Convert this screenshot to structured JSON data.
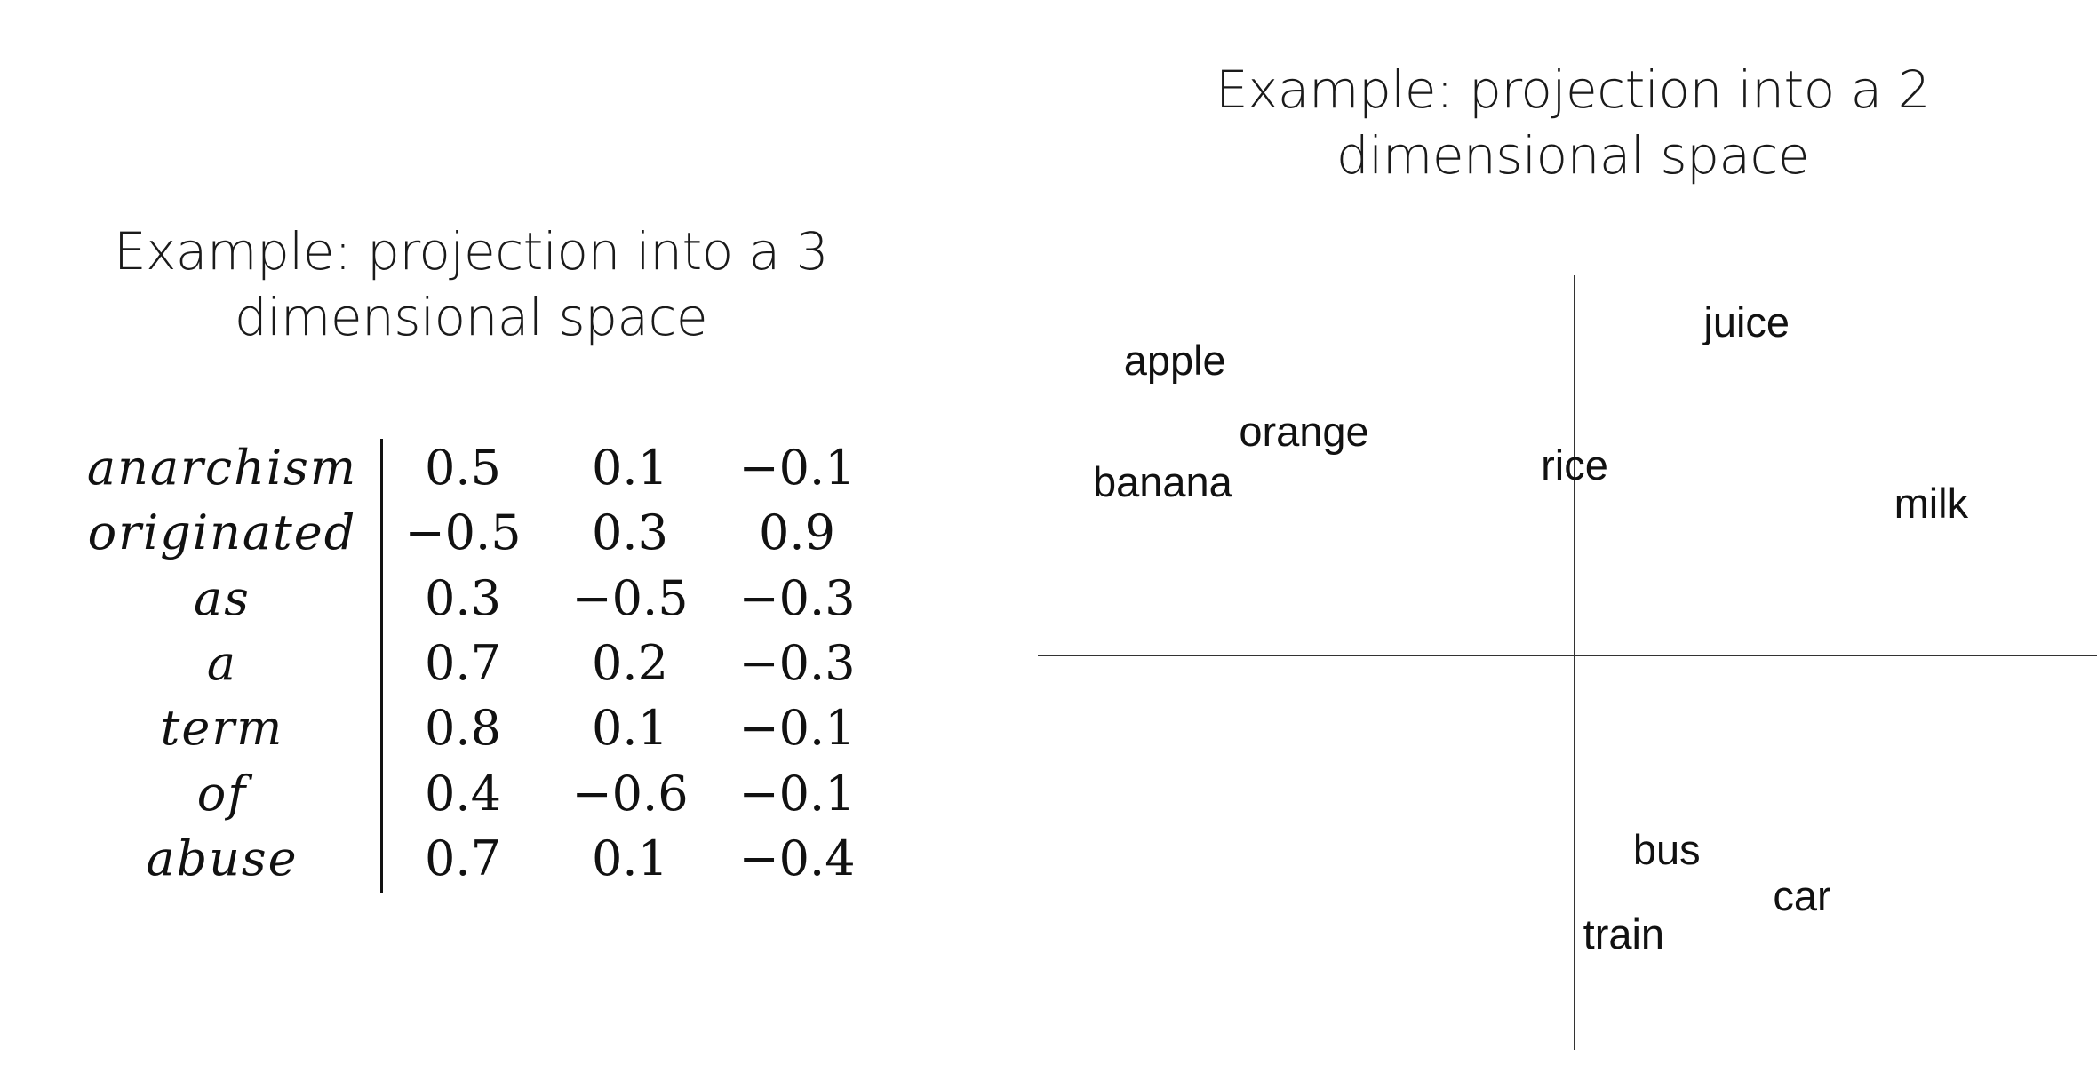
{
  "left_title": {
    "line1": "Example: projection into a 3",
    "line2": "dimensional space"
  },
  "right_title": {
    "line1": "Example: projection into a 2",
    "line2": "dimensional space"
  },
  "table": {
    "rows": [
      {
        "word": "anarchism",
        "values": [
          "0.5",
          "0.1",
          "−0.1"
        ]
      },
      {
        "word": "originated",
        "values": [
          "−0.5",
          "0.3",
          "0.9"
        ]
      },
      {
        "word": "as",
        "values": [
          "0.3",
          "−0.5",
          "−0.3"
        ]
      },
      {
        "word": "a",
        "values": [
          "0.7",
          "0.2",
          "−0.3"
        ]
      },
      {
        "word": "term",
        "values": [
          "0.8",
          "0.1",
          "−0.1"
        ]
      },
      {
        "word": "of",
        "values": [
          "0.4",
          "−0.6",
          "−0.1"
        ]
      },
      {
        "word": "abuse",
        "values": [
          "0.7",
          "0.1",
          "−0.4"
        ]
      }
    ]
  },
  "projection": {
    "points": [
      {
        "label": "apple",
        "x": -0.65,
        "y": 0.7
      },
      {
        "label": "juice",
        "x": 0.28,
        "y": 0.79
      },
      {
        "label": "orange",
        "x": -0.44,
        "y": 0.53
      },
      {
        "label": "rice",
        "x": 0.0,
        "y": 0.45
      },
      {
        "label": "banana",
        "x": -0.67,
        "y": 0.41
      },
      {
        "label": "milk",
        "x": 0.58,
        "y": 0.36
      },
      {
        "label": "bus",
        "x": 0.15,
        "y": -0.46
      },
      {
        "label": "car",
        "x": 0.37,
        "y": -0.57
      },
      {
        "label": "train",
        "x": 0.08,
        "y": -0.66
      }
    ]
  }
}
